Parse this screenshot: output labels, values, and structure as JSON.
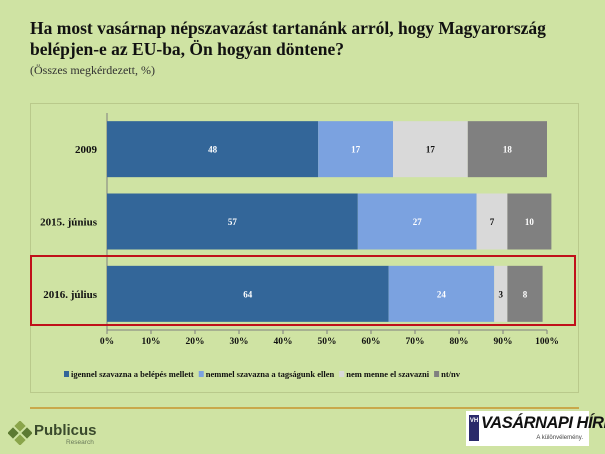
{
  "title": "Ha most vasárnap népszavazást tartanánk arról, hogy Magyarország belépjen-e az EU-ba, Ön hogyan döntene?",
  "subtitle": "(Összes megkérdezett, %)",
  "chart_data": {
    "type": "bar",
    "orientation": "horizontal",
    "stacked": true,
    "categories": [
      "2009",
      "2015. június",
      "2016. július"
    ],
    "series": [
      {
        "name": "igennel szavazna a belépés mellett",
        "values": [
          48,
          57,
          64
        ],
        "color": "#336699"
      },
      {
        "name": "nemmel szavazna a tagságunk ellen",
        "values": [
          17,
          27,
          24
        ],
        "color": "#7ba2e0"
      },
      {
        "name": "nem menne el szavazni",
        "values": [
          17,
          7,
          3
        ],
        "color": "#d9d9d9"
      },
      {
        "name": "nt/nv",
        "values": [
          18,
          10,
          8
        ],
        "color": "#808080"
      }
    ],
    "x_ticks": [
      "0%",
      "10%",
      "20%",
      "30%",
      "40%",
      "50%",
      "60%",
      "70%",
      "80%",
      "90%",
      "100%"
    ],
    "xlim": [
      0,
      100
    ],
    "legend_position": "bottom",
    "highlighted_category": "2016. július",
    "highlight_color": "#c0101a"
  },
  "logos": {
    "left_name": "Publicus",
    "left_sub": "Research",
    "right_brand": "VASÁRNAPI HÍREK",
    "right_mark": "VH",
    "right_tagline": "A különvélemény."
  }
}
